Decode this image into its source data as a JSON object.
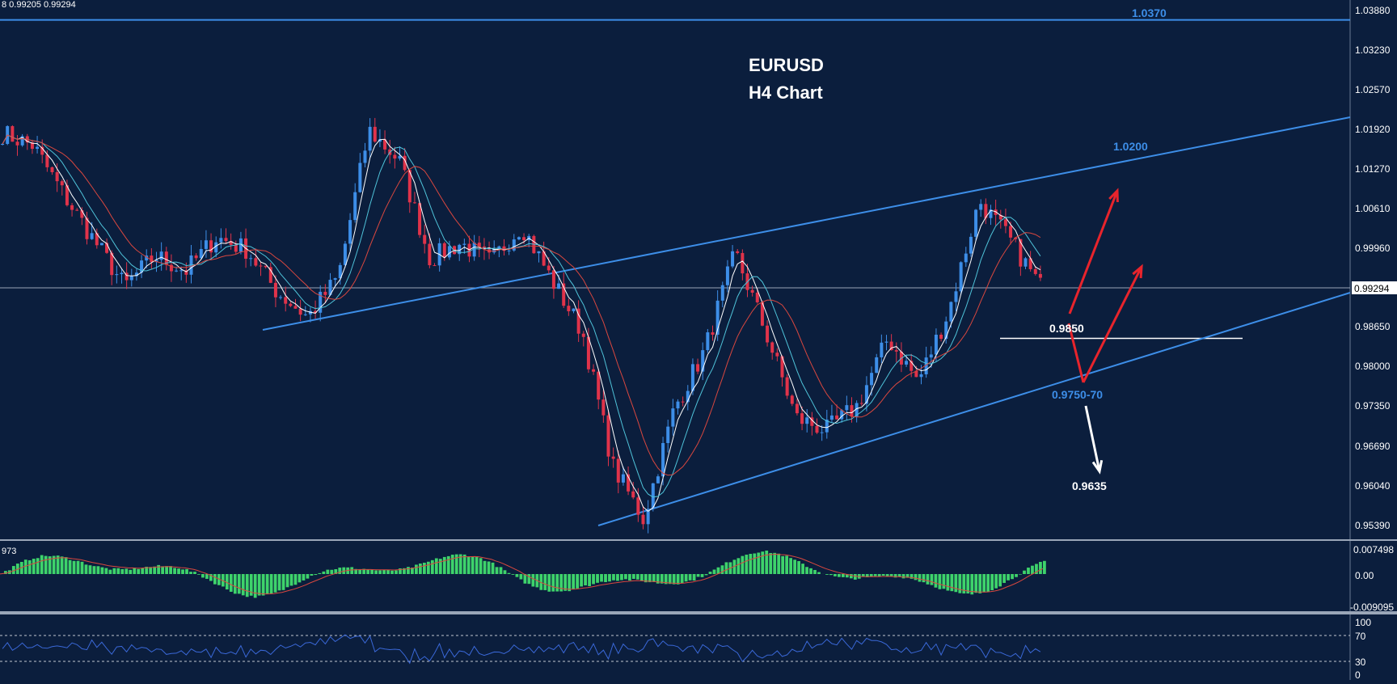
{
  "header": {
    "info_text": "8 0.99205 0.99294"
  },
  "title": {
    "line1": "EURUSD",
    "line2": "H4 Chart"
  },
  "main": {
    "price_axis_labels": [
      "1.03880",
      "1.03230",
      "1.02570",
      "1.01920",
      "1.01270",
      "1.00610",
      "0.99960",
      "0.99294",
      "0.98650",
      "0.98000",
      "0.97350",
      "0.96690",
      "0.96040",
      "0.95390"
    ],
    "current_price": "0.99294",
    "annotations": [
      {
        "text": "1.0370",
        "color": "#3d8ee8"
      },
      {
        "text": "1.0200",
        "color": "#3d8ee8"
      },
      {
        "text": "0.9850",
        "color": "#ffffff"
      },
      {
        "text": "0.9750-70",
        "color": "#3d8ee8"
      },
      {
        "text": "0.9635",
        "color": "#ffffff"
      }
    ]
  },
  "macd": {
    "label": "973",
    "axis_labels": [
      "0.007498",
      "0.00",
      "-0.009095"
    ]
  },
  "rsi": {
    "axis_labels": [
      "100",
      "70",
      "30",
      "0"
    ]
  },
  "colors": {
    "background": "#0b1e3d",
    "bull": "#3d8ee8",
    "bear": "#e0334a",
    "trendline": "#3d8ee8",
    "ma_white": "#ffffff",
    "ma_cyan": "#4fc3d9",
    "ma_red": "#d9473f",
    "macd_hist": "#3ed36b",
    "rsi_line": "#3a68d8",
    "arrow_red": "#e8242c",
    "arrow_white": "#ffffff"
  },
  "chart_data": {
    "type": "candlestick",
    "symbol": "EURUSD",
    "timeframe": "H4",
    "ylim": [
      0.9539,
      1.0388
    ],
    "anchor_points": [
      {
        "close": 1.0185
      },
      {
        "close": 1.0165
      },
      {
        "close": 1.0085
      },
      {
        "close": 1.001
      },
      {
        "close": 0.9935
      },
      {
        "close": 0.9985
      },
      {
        "close": 0.996
      },
      {
        "close": 1.0015
      },
      {
        "close": 0.9995
      },
      {
        "close": 0.9925
      },
      {
        "close": 0.9885
      },
      {
        "close": 0.995
      },
      {
        "close": 1.019
      },
      {
        "close": 1.014
      },
      {
        "close": 0.998
      },
      {
        "close": 1.0005
      },
      {
        "close": 0.9975
      },
      {
        "close": 1.0035
      },
      {
        "close": 0.9945
      },
      {
        "close": 0.986
      },
      {
        "close": 0.964
      },
      {
        "close": 0.9555
      },
      {
        "close": 0.9735
      },
      {
        "close": 0.983
      },
      {
        "close": 0.999
      },
      {
        "close": 0.986
      },
      {
        "close": 0.972
      },
      {
        "close": 0.97
      },
      {
        "close": 0.974
      },
      {
        "close": 0.985
      },
      {
        "close": 0.978
      },
      {
        "close": 0.9895
      },
      {
        "close": 1.0075
      },
      {
        "close": 1.001
      },
      {
        "close": 0.9935
      }
    ],
    "levels": [
      {
        "label": "1.0370",
        "value": 1.037
      },
      {
        "label": "0.9850",
        "value": 0.985
      }
    ]
  }
}
